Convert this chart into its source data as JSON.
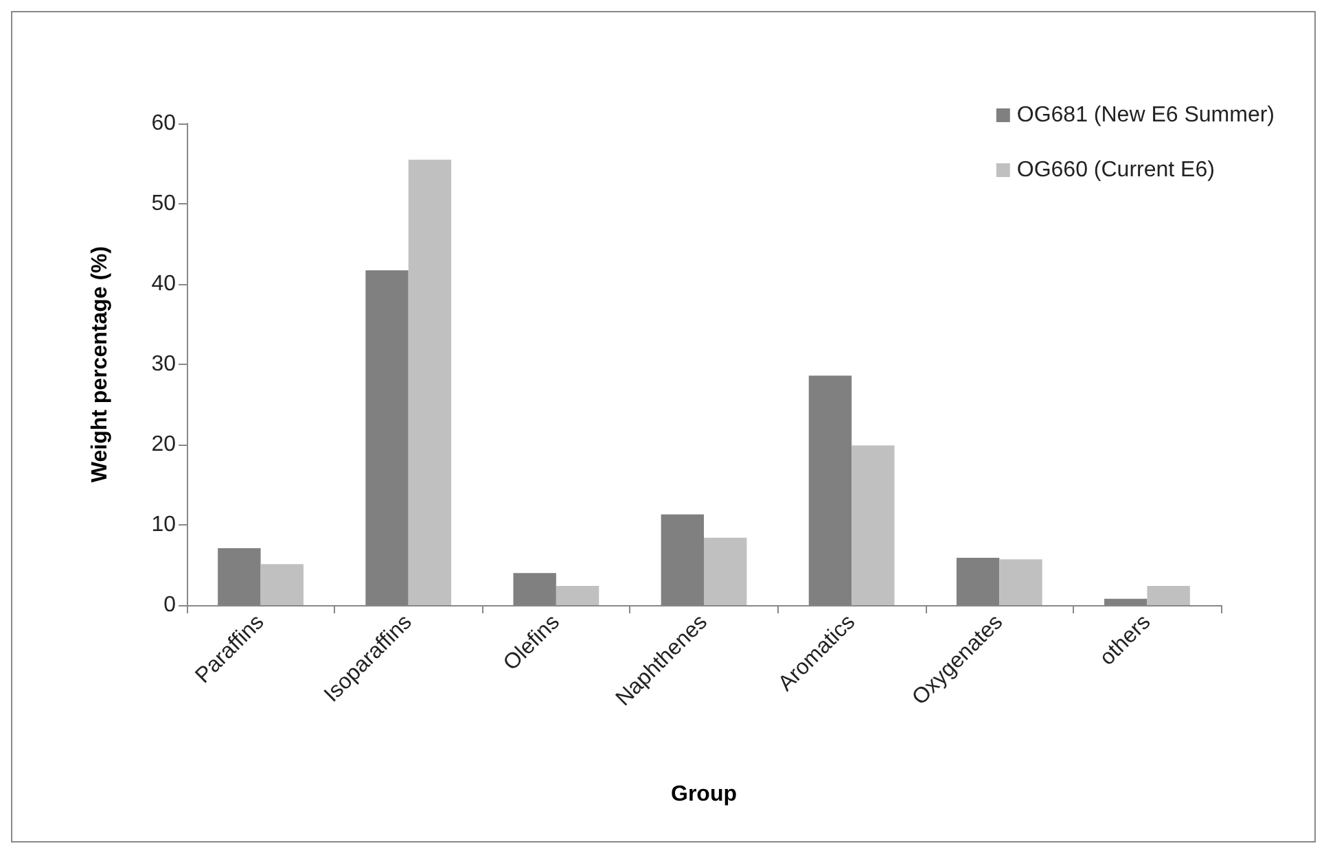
{
  "chart_data": {
    "type": "bar",
    "xlabel": "Group",
    "ylabel": "Weight percentage (%)",
    "categories": [
      "Paraffins",
      "Isoparaffins",
      "Olefins",
      "Naphthenes",
      "Aromatics",
      "Oxygenates",
      "others"
    ],
    "series": [
      {
        "name": "OG681 (New E6 Summer)",
        "color": "#808080",
        "values": [
          7.1,
          41.7,
          4.0,
          11.3,
          28.6,
          5.9,
          0.8
        ]
      },
      {
        "name": "OG660 (Current E6)",
        "color": "#c0c0c0",
        "values": [
          5.1,
          55.5,
          2.4,
          8.4,
          19.9,
          5.7,
          2.4
        ]
      }
    ],
    "ylim": [
      0,
      60
    ],
    "yticks": [
      0,
      10,
      20,
      30,
      40,
      50,
      60
    ],
    "grid": false,
    "legend": "top right"
  }
}
